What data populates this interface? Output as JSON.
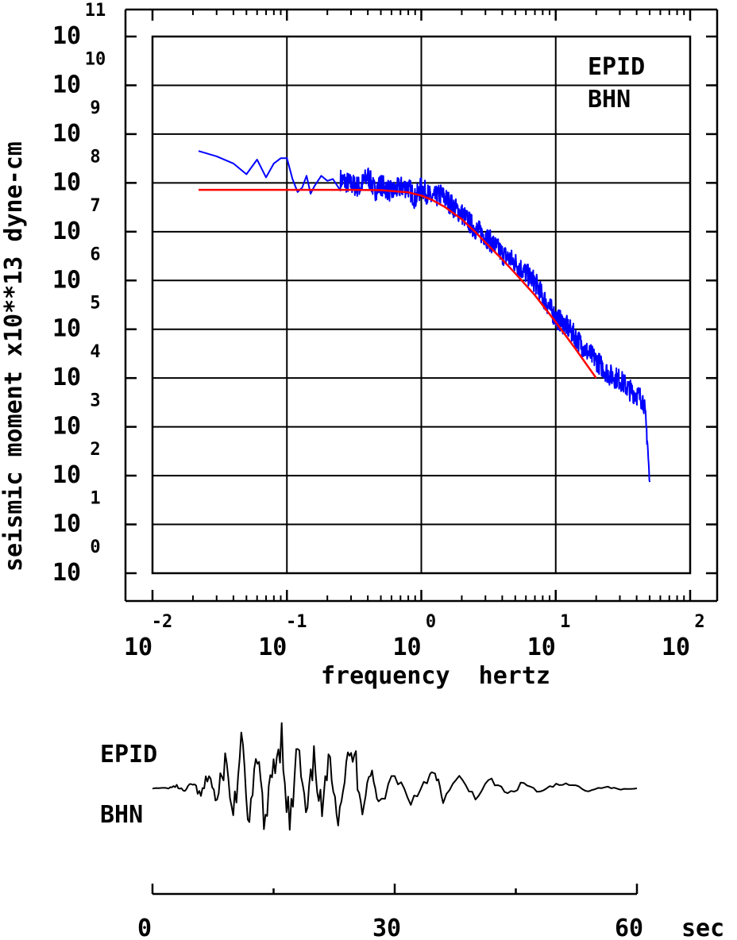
{
  "chart_data": [
    {
      "type": "line",
      "title": "",
      "xlabel": "frequency  hertz",
      "ylabel": "seismic moment x10**13 dyne-cm",
      "x_scale": "log",
      "y_scale": "log",
      "xlim": [
        0.01,
        100
      ],
      "ylim": [
        1,
        100000000000
      ],
      "grid": true,
      "x_tick_exponents": [
        "-2",
        "-1",
        "0",
        "1",
        "2"
      ],
      "x_tick_base": "10",
      "y_tick_exponents": [
        "11",
        "10",
        "9",
        "8",
        "7",
        "6",
        "5",
        "4",
        "3",
        "2",
        "1",
        "0"
      ],
      "y_tick_base": "10",
      "annotations": [
        "EPID",
        "BHN"
      ],
      "series": [
        {
          "color": "#0000ff",
          "style": "noisy-spectrum",
          "x": [
            0.022,
            0.03,
            0.04,
            0.05,
            0.06,
            0.07,
            0.08,
            0.09,
            0.1,
            0.11,
            0.12,
            0.13,
            0.14,
            0.15,
            0.16,
            0.18,
            0.2,
            0.22,
            0.25,
            0.3,
            0.35,
            0.4,
            0.45,
            0.5,
            0.6,
            0.7,
            0.8,
            0.9,
            1.0,
            1.2,
            1.4,
            1.6,
            1.8,
            2.0,
            2.5,
            3.0,
            3.5,
            4.0,
            5.0,
            6.0,
            7.0,
            8.0,
            10.0,
            12.0,
            14.0,
            17.0,
            20.0,
            25.0,
            30.0,
            35.0,
            40.0,
            45.0,
            48.0,
            50.0
          ],
          "y": [
            450000000,
            350000000,
            250000000,
            150000000,
            300000000,
            130000000,
            250000000,
            320000000,
            320000000,
            120000000,
            65000000,
            80000000,
            140000000,
            60000000,
            85000000,
            140000000,
            110000000,
            120000000,
            100000000,
            80000000,
            70000000,
            120000000,
            60000000,
            80000000,
            55000000,
            70000000,
            70000000,
            40000000,
            70000000,
            40000000,
            50000000,
            35000000,
            25000000,
            20000000,
            10000000,
            7000000,
            4500000,
            3000000,
            2000000,
            1200000,
            800000,
            400000,
            150000,
            100000,
            60000,
            30000,
            20000,
            10000,
            8000,
            5000,
            4000,
            3000,
            500,
            50
          ]
        },
        {
          "color": "#ff0000",
          "style": "model-fit",
          "x": [
            0.022,
            0.05,
            0.1,
            0.2,
            0.3,
            0.5,
            0.8,
            1.0,
            1.2,
            1.5,
            2.0,
            2.5,
            3.0,
            4.0,
            5.0,
            7.0,
            10.0,
            14.0,
            20.0
          ],
          "y": [
            72000000,
            72000000,
            72000000,
            72000000,
            72000000,
            71000000,
            64000000,
            55000000,
            45000000,
            32000000,
            18000000,
            10000000,
            6000000,
            2700000,
            1400000,
            500000,
            140000,
            40000,
            10000
          ]
        }
      ]
    },
    {
      "type": "line",
      "title": "",
      "annotations": [
        "EPID",
        "BHN"
      ],
      "xlim": [
        0,
        60
      ],
      "x_tick_labels": [
        "0",
        "30",
        "60"
      ],
      "x_unit": "sec",
      "series": [
        {
          "color": "#000000",
          "style": "seismogram",
          "x": [
            0,
            2,
            3,
            4,
            5,
            6,
            7,
            8,
            9,
            10,
            11,
            12,
            13,
            14,
            15,
            16,
            17,
            18,
            19,
            20,
            21,
            22,
            23,
            24,
            25,
            26,
            27,
            28,
            30,
            32,
            34,
            35,
            36,
            38,
            40,
            42,
            44,
            46,
            48,
            50,
            52,
            54,
            56,
            58,
            60
          ],
          "y": [
            0,
            0.01,
            0.04,
            -0.06,
            0.1,
            -0.16,
            0.28,
            -0.3,
            0.55,
            -0.5,
            0.75,
            -0.6,
            0.55,
            -0.7,
            0.5,
            1.0,
            -0.8,
            0.8,
            -0.6,
            0.55,
            -0.45,
            0.6,
            -0.5,
            0.4,
            0.65,
            -0.35,
            0.35,
            -0.3,
            0.28,
            -0.25,
            0.2,
            0.25,
            -0.2,
            0.18,
            -0.15,
            0.15,
            -0.12,
            0.1,
            -0.08,
            0.07,
            0.06,
            -0.04,
            0.03,
            -0.02,
            0
          ]
        }
      ]
    }
  ]
}
